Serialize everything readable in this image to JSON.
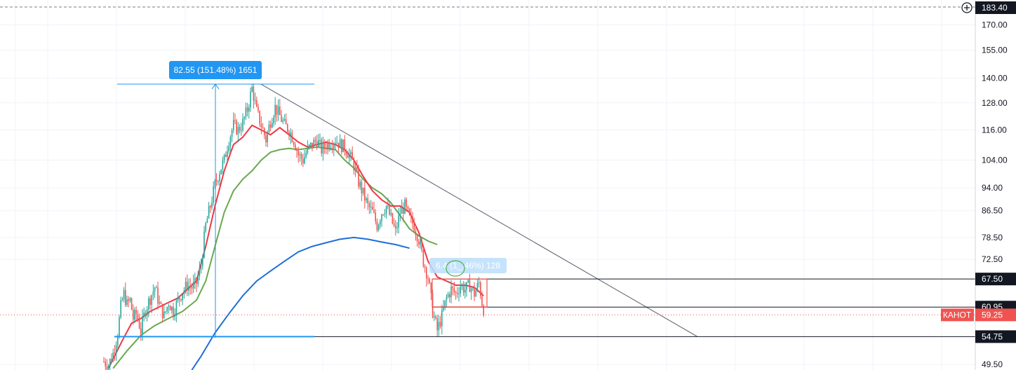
{
  "chart_data": {
    "type": "candlestick",
    "title": "",
    "xlabel": "",
    "ylabel": "",
    "y_scale": "log",
    "y_range": [
      48.5,
      186
    ],
    "grid": true,
    "y_ticks": [
      "170.00",
      "155.00",
      "140.00",
      "128.00",
      "116.00",
      "104.00",
      "94.00",
      "86.50",
      "78.50",
      "72.50",
      "49.50"
    ],
    "top_price_label": "183.40",
    "price_tags": [
      {
        "label": "67.50",
        "value": 67.5,
        "style": "dark"
      },
      {
        "label": "60.95",
        "value": 60.95,
        "style": "dark"
      },
      {
        "label": "54.75",
        "value": 54.75,
        "style": "dark"
      }
    ],
    "last_price": {
      "ticker": "КАНОТ",
      "label": "59.25",
      "value": 59.25,
      "color": "#ef5350"
    },
    "measures": [
      {
        "text": "82.55 (151.48%) 1651",
        "color": "#2196f3",
        "from": 54.5,
        "to": 137.05
      },
      {
        "text": "6.4 (1_.46%) 128",
        "color": "#bbdefb",
        "from": 61.0,
        "to": 67.5
      }
    ],
    "horizontal_levels": [
      67.5,
      60.95,
      54.75
    ],
    "trendline": {
      "from": {
        "bar": 0,
        "price": 137.0
      },
      "to": {
        "bar": 1,
        "price": 54.75
      }
    },
    "colors": {
      "up": "#26a69a",
      "down": "#ef5350",
      "ma_fast": "#f23645",
      "ma_mid": "#6aa84f",
      "ma_slow": "#1e6fd9",
      "measure": "#2196f3"
    },
    "price_path": [
      [
        0,
        50.0
      ],
      [
        3,
        49.4
      ],
      [
        6,
        51.5
      ],
      [
        9,
        55.5
      ],
      [
        11,
        61.0
      ],
      [
        13,
        64.0
      ],
      [
        15,
        61.5
      ],
      [
        17,
        62.5
      ],
      [
        19,
        58.5
      ],
      [
        21,
        59.5
      ],
      [
        24,
        56.0
      ],
      [
        27,
        60.5
      ],
      [
        30,
        63.0
      ],
      [
        33,
        65.5
      ],
      [
        36,
        61.5
      ],
      [
        39,
        59.0
      ],
      [
        42,
        62.0
      ],
      [
        45,
        60.0
      ],
      [
        48,
        62.5
      ],
      [
        51,
        64.5
      ],
      [
        54,
        66.0
      ],
      [
        57,
        65.5
      ],
      [
        60,
        66.5
      ],
      [
        63,
        71.0
      ],
      [
        66,
        82.0
      ],
      [
        69,
        88.0
      ],
      [
        72,
        95.0
      ],
      [
        75,
        100.0
      ],
      [
        78,
        104.0
      ],
      [
        81,
        112.0
      ],
      [
        84,
        118.0
      ],
      [
        87,
        116.0
      ],
      [
        90,
        119.0
      ],
      [
        93,
        125.0
      ],
      [
        96,
        135.0
      ],
      [
        99,
        124.0
      ],
      [
        102,
        118.0
      ],
      [
        105,
        112.0
      ],
      [
        108,
        120.0
      ],
      [
        111,
        126.0
      ],
      [
        114,
        122.0
      ],
      [
        117,
        118.0
      ],
      [
        120,
        116.0
      ],
      [
        123,
        112.0
      ],
      [
        126,
        106.0
      ],
      [
        129,
        104.0
      ],
      [
        132,
        108.0
      ],
      [
        135,
        110.0
      ],
      [
        138,
        112.0
      ],
      [
        141,
        108.0
      ],
      [
        144,
        110.0
      ],
      [
        147,
        111.0
      ],
      [
        150,
        112.0
      ],
      [
        153,
        110.0
      ],
      [
        156,
        109.0
      ],
      [
        159,
        106.0
      ],
      [
        162,
        102.0
      ],
      [
        165,
        96.0
      ],
      [
        168,
        92.0
      ],
      [
        171,
        88.0
      ],
      [
        174,
        86.0
      ],
      [
        177,
        82.0
      ],
      [
        180,
        86.0
      ],
      [
        183,
        88.0
      ],
      [
        186,
        84.0
      ],
      [
        189,
        80.0
      ],
      [
        192,
        86.0
      ],
      [
        195,
        88.0
      ],
      [
        198,
        84.0
      ],
      [
        201,
        82.0
      ],
      [
        204,
        78.0
      ],
      [
        207,
        72.0
      ],
      [
        210,
        68.0
      ],
      [
        213,
        60.0
      ],
      [
        216,
        56.0
      ],
      [
        219,
        59.0
      ],
      [
        222,
        63.0
      ],
      [
        225,
        65.0
      ],
      [
        228,
        64.0
      ],
      [
        231,
        66.0
      ],
      [
        234,
        65.0
      ],
      [
        237,
        66.0
      ],
      [
        240,
        64.0
      ],
      [
        243,
        66.5
      ],
      [
        245,
        62.0
      ],
      [
        246,
        59.25
      ]
    ],
    "ma_fast": [
      [
        3,
        48.8
      ],
      [
        12,
        54.0
      ],
      [
        18,
        57.5
      ],
      [
        24,
        58.5
      ],
      [
        30,
        60.0
      ],
      [
        36,
        61.0
      ],
      [
        42,
        62.0
      ],
      [
        48,
        63.0
      ],
      [
        54,
        65.0
      ],
      [
        60,
        67.0
      ],
      [
        66,
        76.0
      ],
      [
        72,
        88.0
      ],
      [
        78,
        100.0
      ],
      [
        84,
        110.0
      ],
      [
        90,
        113.0
      ],
      [
        96,
        118.0
      ],
      [
        102,
        116.0
      ],
      [
        108,
        114.0
      ],
      [
        114,
        117.0
      ],
      [
        120,
        114.0
      ],
      [
        126,
        111.0
      ],
      [
        132,
        109.0
      ],
      [
        138,
        110.0
      ],
      [
        144,
        111.0
      ],
      [
        150,
        110.0
      ],
      [
        156,
        108.0
      ],
      [
        162,
        104.0
      ],
      [
        168,
        98.0
      ],
      [
        174,
        93.0
      ],
      [
        180,
        90.0
      ],
      [
        186,
        88.0
      ],
      [
        192,
        88.0
      ],
      [
        198,
        86.0
      ],
      [
        204,
        80.0
      ],
      [
        210,
        72.0
      ],
      [
        216,
        68.0
      ],
      [
        222,
        67.0
      ],
      [
        228,
        66.0
      ],
      [
        234,
        66.0
      ],
      [
        240,
        65.5
      ],
      [
        246,
        63.5
      ]
    ],
    "ma_mid": [
      [
        6,
        48.8
      ],
      [
        15,
        52.0
      ],
      [
        24,
        55.0
      ],
      [
        33,
        57.0
      ],
      [
        42,
        58.5
      ],
      [
        51,
        60.0
      ],
      [
        60,
        62.5
      ],
      [
        66,
        67.0
      ],
      [
        72,
        76.0
      ],
      [
        78,
        86.0
      ],
      [
        84,
        93.0
      ],
      [
        90,
        97.0
      ],
      [
        96,
        100.0
      ],
      [
        102,
        104.0
      ],
      [
        108,
        107.0
      ],
      [
        114,
        108.0
      ],
      [
        120,
        108.5
      ],
      [
        126,
        108.0
      ],
      [
        132,
        108.5
      ],
      [
        138,
        109.0
      ],
      [
        144,
        108.5
      ],
      [
        150,
        108.0
      ],
      [
        156,
        104.0
      ],
      [
        162,
        101.0
      ],
      [
        168,
        97.0
      ],
      [
        174,
        94.0
      ],
      [
        180,
        92.0
      ],
      [
        186,
        89.0
      ],
      [
        192,
        85.0
      ],
      [
        198,
        81.0
      ],
      [
        204,
        79.0
      ],
      [
        210,
        77.5
      ],
      [
        216,
        76.5
      ]
    ],
    "ma_slow": [
      [
        57,
        48.5
      ],
      [
        63,
        51.0
      ],
      [
        72,
        55.5
      ],
      [
        81,
        59.5
      ],
      [
        90,
        63.5
      ],
      [
        99,
        67.0
      ],
      [
        108,
        69.5
      ],
      [
        117,
        72.0
      ],
      [
        126,
        74.5
      ],
      [
        135,
        76.0
      ],
      [
        144,
        77.0
      ],
      [
        153,
        78.0
      ],
      [
        162,
        78.5
      ],
      [
        171,
        78.0
      ],
      [
        180,
        77.2
      ],
      [
        189,
        76.5
      ],
      [
        198,
        75.5
      ]
    ]
  }
}
